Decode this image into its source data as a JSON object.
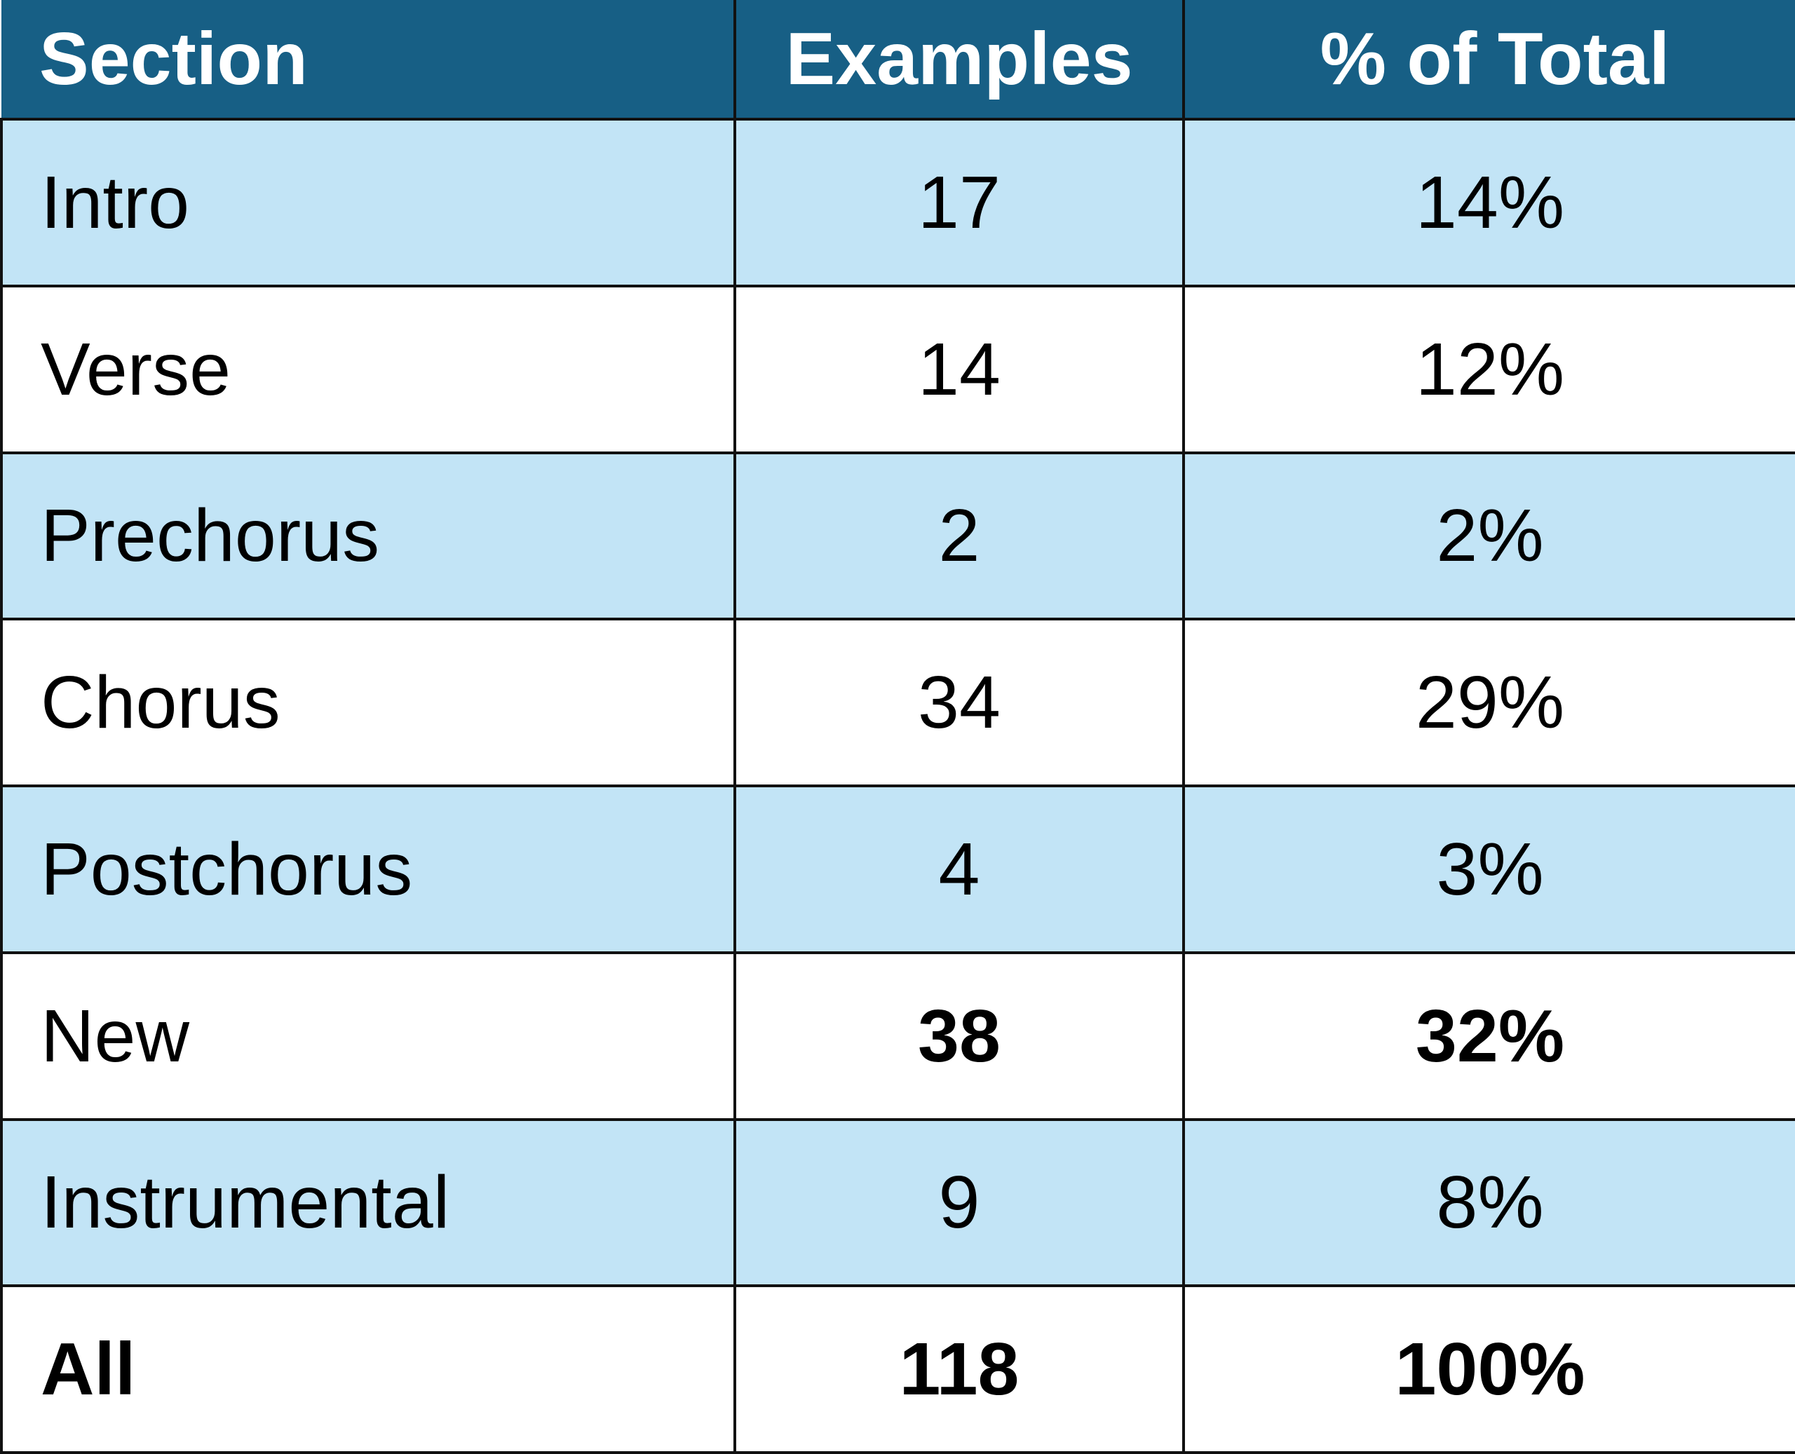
{
  "table": {
    "header": {
      "section": "Section",
      "examples": "Examples",
      "percent": "% of Total"
    },
    "rows": [
      {
        "section": "Intro",
        "examples": "17",
        "percent": "14%",
        "bold_section": false,
        "bold_values": false
      },
      {
        "section": "Verse",
        "examples": "14",
        "percent": "12%",
        "bold_section": false,
        "bold_values": false
      },
      {
        "section": "Prechorus",
        "examples": "2",
        "percent": "2%",
        "bold_section": false,
        "bold_values": false
      },
      {
        "section": "Chorus",
        "examples": "34",
        "percent": "29%",
        "bold_section": false,
        "bold_values": false
      },
      {
        "section": "Postchorus",
        "examples": "4",
        "percent": "3%",
        "bold_section": false,
        "bold_values": false
      },
      {
        "section": "New",
        "examples": "38",
        "percent": "32%",
        "bold_section": false,
        "bold_values": true
      },
      {
        "section": "Instrumental",
        "examples": "9",
        "percent": "8%",
        "bold_section": false,
        "bold_values": false
      },
      {
        "section": "All",
        "examples": "118",
        "percent": "100%",
        "bold_section": true,
        "bold_values": true
      }
    ]
  },
  "colors": {
    "header_bg": "#175f85",
    "header_text": "#ffffff",
    "shaded_row_bg": "#c2e4f6",
    "plain_row_bg": "#ffffff",
    "grid": "#111111"
  }
}
